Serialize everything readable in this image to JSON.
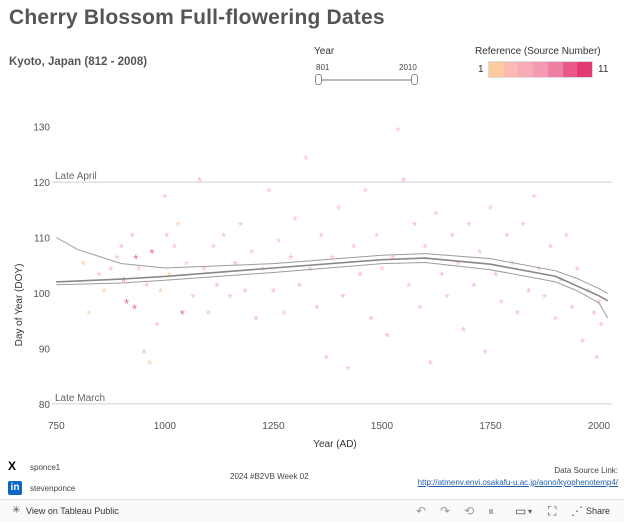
{
  "header": {
    "title": "Cherry Blossom Full-flowering Dates",
    "subtitle": "Kyoto, Japan (812 - 2008)"
  },
  "year_filter": {
    "label": "Year",
    "min_label": "801",
    "max_label": "2010",
    "min": 801,
    "max": 2010
  },
  "reference_legend": {
    "label": "Reference (Source Number)",
    "min_label": "1",
    "max_label": "11",
    "colors": [
      "#fdcaa0",
      "#fbb9b2",
      "#f8abb7",
      "#f59ab3",
      "#f080a3",
      "#ea5889",
      "#e23b72"
    ]
  },
  "footer": {
    "twitter": "sponce1",
    "linkedin": "stevenponce",
    "credit": "2024 #B2VB Week 02",
    "source_label": "Data Source Link:",
    "source_url": "http://atmenv.envi.osakafu-u.ac.jp/aono/kyophenotemp4/"
  },
  "toolbar": {
    "view_label": "View on Tableau Public",
    "share_label": "Share"
  },
  "chart_data": {
    "type": "scatter",
    "title": "",
    "xlabel": "Year (AD)",
    "ylabel": "Day of Year (DOY)",
    "xlim": [
      740,
      2030
    ],
    "ylim": [
      78,
      133
    ],
    "x_ticks": [
      "750",
      "1000",
      "1250",
      "1500",
      "1750",
      "2000"
    ],
    "y_ticks": [
      "80",
      "90",
      "100",
      "110",
      "120",
      "130"
    ],
    "x_tick_values": [
      750,
      1000,
      1250,
      1500,
      1750,
      2000
    ],
    "y_tick_values": [
      80,
      90,
      100,
      110,
      120,
      130
    ],
    "marker": "*",
    "reference_lines": [
      {
        "label": "Late April",
        "y": 120
      },
      {
        "label": "Late March",
        "y": 80
      }
    ],
    "trend_lines": {
      "center": [
        [
          750,
          102
        ],
        [
          900,
          102.5
        ],
        [
          1000,
          103
        ],
        [
          1250,
          104.5
        ],
        [
          1500,
          106
        ],
        [
          1600,
          106.3
        ],
        [
          1750,
          105.2
        ],
        [
          1900,
          103
        ],
        [
          2000,
          99.5
        ],
        [
          2020,
          98.6
        ]
      ],
      "upper": [
        [
          750,
          110
        ],
        [
          800,
          107.8
        ],
        [
          900,
          105.3
        ],
        [
          1000,
          104.5
        ],
        [
          1250,
          105.3
        ],
        [
          1500,
          106.8
        ],
        [
          1600,
          107.1
        ],
        [
          1750,
          106.2
        ],
        [
          1900,
          104
        ],
        [
          1950,
          102.6
        ],
        [
          2000,
          100.8
        ],
        [
          2020,
          99.9
        ]
      ],
      "lower": [
        [
          750,
          101.5
        ],
        [
          900,
          101.8
        ],
        [
          1000,
          102.3
        ],
        [
          1250,
          103.7
        ],
        [
          1500,
          105.3
        ],
        [
          1600,
          105.5
        ],
        [
          1750,
          104.2
        ],
        [
          1900,
          102
        ],
        [
          1950,
          100.4
        ],
        [
          2000,
          98.2
        ],
        [
          2020,
          95.5
        ]
      ]
    },
    "points": [
      {
        "x": 812,
        "y": 105,
        "ref": 1
      },
      {
        "x": 825,
        "y": 96,
        "ref": 1
      },
      {
        "x": 848,
        "y": 103,
        "ref": 2
      },
      {
        "x": 860,
        "y": 100,
        "ref": 1
      },
      {
        "x": 875,
        "y": 104,
        "ref": 3
      },
      {
        "x": 890,
        "y": 106,
        "ref": 2
      },
      {
        "x": 900,
        "y": 108,
        "ref": 5
      },
      {
        "x": 905,
        "y": 102,
        "ref": 9
      },
      {
        "x": 912,
        "y": 98,
        "ref": 9
      },
      {
        "x": 925,
        "y": 110,
        "ref": 4
      },
      {
        "x": 930,
        "y": 97,
        "ref": 9
      },
      {
        "x": 933,
        "y": 106,
        "ref": 10
      },
      {
        "x": 940,
        "y": 104,
        "ref": 3
      },
      {
        "x": 952,
        "y": 89,
        "ref": 4
      },
      {
        "x": 958,
        "y": 101,
        "ref": 3
      },
      {
        "x": 965,
        "y": 87,
        "ref": 1
      },
      {
        "x": 970,
        "y": 107,
        "ref": 10
      },
      {
        "x": 982,
        "y": 94,
        "ref": 2
      },
      {
        "x": 990,
        "y": 100,
        "ref": 1
      },
      {
        "x": 1000,
        "y": 117,
        "ref": 2
      },
      {
        "x": 1004,
        "y": 110,
        "ref": 4
      },
      {
        "x": 1010,
        "y": 103,
        "ref": 1
      },
      {
        "x": 1022,
        "y": 108,
        "ref": 3
      },
      {
        "x": 1030,
        "y": 112,
        "ref": 1
      },
      {
        "x": 1040,
        "y": 96,
        "ref": 10
      },
      {
        "x": 1050,
        "y": 105,
        "ref": 2
      },
      {
        "x": 1065,
        "y": 99,
        "ref": 3
      },
      {
        "x": 1080,
        "y": 120,
        "ref": 4
      },
      {
        "x": 1090,
        "y": 104,
        "ref": 2
      },
      {
        "x": 1100,
        "y": 96,
        "ref": 3
      },
      {
        "x": 1112,
        "y": 108,
        "ref": 2
      },
      {
        "x": 1120,
        "y": 101,
        "ref": 4
      },
      {
        "x": 1135,
        "y": 110,
        "ref": 3
      },
      {
        "x": 1150,
        "y": 99,
        "ref": 2
      },
      {
        "x": 1162,
        "y": 105,
        "ref": 5
      },
      {
        "x": 1175,
        "y": 112,
        "ref": 3
      },
      {
        "x": 1185,
        "y": 100,
        "ref": 4
      },
      {
        "x": 1200,
        "y": 107,
        "ref": 3
      },
      {
        "x": 1210,
        "y": 95,
        "ref": 4
      },
      {
        "x": 1225,
        "y": 104,
        "ref": 2
      },
      {
        "x": 1240,
        "y": 118,
        "ref": 3
      },
      {
        "x": 1250,
        "y": 100,
        "ref": 4
      },
      {
        "x": 1262,
        "y": 109,
        "ref": 3
      },
      {
        "x": 1275,
        "y": 96,
        "ref": 2
      },
      {
        "x": 1290,
        "y": 106,
        "ref": 4
      },
      {
        "x": 1300,
        "y": 113,
        "ref": 3
      },
      {
        "x": 1310,
        "y": 101,
        "ref": 4
      },
      {
        "x": 1325,
        "y": 124,
        "ref": 2
      },
      {
        "x": 1335,
        "y": 104,
        "ref": 3
      },
      {
        "x": 1350,
        "y": 97,
        "ref": 4
      },
      {
        "x": 1360,
        "y": 110,
        "ref": 3
      },
      {
        "x": 1372,
        "y": 88,
        "ref": 4
      },
      {
        "x": 1385,
        "y": 106,
        "ref": 2
      },
      {
        "x": 1400,
        "y": 115,
        "ref": 3
      },
      {
        "x": 1410,
        "y": 99,
        "ref": 4
      },
      {
        "x": 1422,
        "y": 86,
        "ref": 3
      },
      {
        "x": 1435,
        "y": 108,
        "ref": 2
      },
      {
        "x": 1450,
        "y": 103,
        "ref": 4
      },
      {
        "x": 1462,
        "y": 118,
        "ref": 3
      },
      {
        "x": 1475,
        "y": 95,
        "ref": 4
      },
      {
        "x": 1488,
        "y": 110,
        "ref": 2
      },
      {
        "x": 1500,
        "y": 104,
        "ref": 3
      },
      {
        "x": 1512,
        "y": 92,
        "ref": 4
      },
      {
        "x": 1525,
        "y": 106,
        "ref": 2
      },
      {
        "x": 1537,
        "y": 129,
        "ref": 3
      },
      {
        "x": 1550,
        "y": 120,
        "ref": 4
      },
      {
        "x": 1562,
        "y": 101,
        "ref": 3
      },
      {
        "x": 1575,
        "y": 112,
        "ref": 4
      },
      {
        "x": 1588,
        "y": 97,
        "ref": 2
      },
      {
        "x": 1600,
        "y": 108,
        "ref": 3
      },
      {
        "x": 1612,
        "y": 87,
        "ref": 4
      },
      {
        "x": 1625,
        "y": 114,
        "ref": 3
      },
      {
        "x": 1638,
        "y": 103,
        "ref": 4
      },
      {
        "x": 1650,
        "y": 99,
        "ref": 3
      },
      {
        "x": 1662,
        "y": 110,
        "ref": 4
      },
      {
        "x": 1675,
        "y": 105,
        "ref": 3
      },
      {
        "x": 1688,
        "y": 93,
        "ref": 4
      },
      {
        "x": 1700,
        "y": 112,
        "ref": 3
      },
      {
        "x": 1712,
        "y": 101,
        "ref": 4
      },
      {
        "x": 1725,
        "y": 107,
        "ref": 3
      },
      {
        "x": 1738,
        "y": 89,
        "ref": 4
      },
      {
        "x": 1750,
        "y": 115,
        "ref": 3
      },
      {
        "x": 1762,
        "y": 103,
        "ref": 4
      },
      {
        "x": 1775,
        "y": 98,
        "ref": 3
      },
      {
        "x": 1788,
        "y": 110,
        "ref": 4
      },
      {
        "x": 1800,
        "y": 105,
        "ref": 3
      },
      {
        "x": 1812,
        "y": 96,
        "ref": 4
      },
      {
        "x": 1825,
        "y": 112,
        "ref": 3
      },
      {
        "x": 1838,
        "y": 100,
        "ref": 4
      },
      {
        "x": 1850,
        "y": 117,
        "ref": 3
      },
      {
        "x": 1862,
        "y": 104,
        "ref": 4
      },
      {
        "x": 1875,
        "y": 99,
        "ref": 3
      },
      {
        "x": 1888,
        "y": 108,
        "ref": 4
      },
      {
        "x": 1900,
        "y": 95,
        "ref": 3
      },
      {
        "x": 1912,
        "y": 102,
        "ref": 4
      },
      {
        "x": 1925,
        "y": 110,
        "ref": 3
      },
      {
        "x": 1938,
        "y": 97,
        "ref": 4
      },
      {
        "x": 1950,
        "y": 104,
        "ref": 3
      },
      {
        "x": 1962,
        "y": 91,
        "ref": 4
      },
      {
        "x": 1975,
        "y": 100,
        "ref": 3
      },
      {
        "x": 1988,
        "y": 96,
        "ref": 4
      },
      {
        "x": 1995,
        "y": 88,
        "ref": 3
      },
      {
        "x": 2000,
        "y": 98,
        "ref": 4
      },
      {
        "x": 2005,
        "y": 94,
        "ref": 3
      }
    ]
  }
}
